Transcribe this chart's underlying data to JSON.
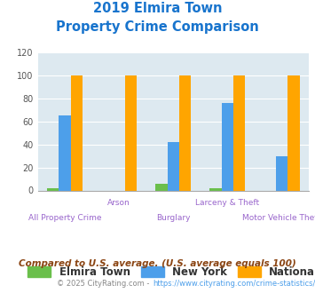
{
  "title_line1": "2019 Elmira Town",
  "title_line2": "Property Crime Comparison",
  "title_color": "#1874CD",
  "categories": [
    "All Property Crime",
    "Arson",
    "Burglary",
    "Larceny & Theft",
    "Motor Vehicle Theft"
  ],
  "elmira_values": [
    2,
    0,
    6,
    2,
    0
  ],
  "newyork_values": [
    65,
    0,
    42,
    76,
    30
  ],
  "national_values": [
    100,
    100,
    100,
    100,
    100
  ],
  "elmira_color": "#6abf4b",
  "newyork_color": "#4d9fea",
  "national_color": "#ffa500",
  "ylim": [
    0,
    120
  ],
  "yticks": [
    0,
    20,
    40,
    60,
    80,
    100,
    120
  ],
  "background_color": "#dde9f0",
  "legend_labels": [
    "Elmira Town",
    "New York",
    "National"
  ],
  "footnote1": "Compared to U.S. average. (U.S. average equals 100)",
  "footnote2": "© 2025 CityRating.com - https://www.cityrating.com/crime-statistics/",
  "footnote1_color": "#8b4513",
  "footnote2_color": "#888888",
  "footnote2_link_color": "#4d9fea",
  "xlabel_color": "#9966cc",
  "bar_width": 0.22
}
